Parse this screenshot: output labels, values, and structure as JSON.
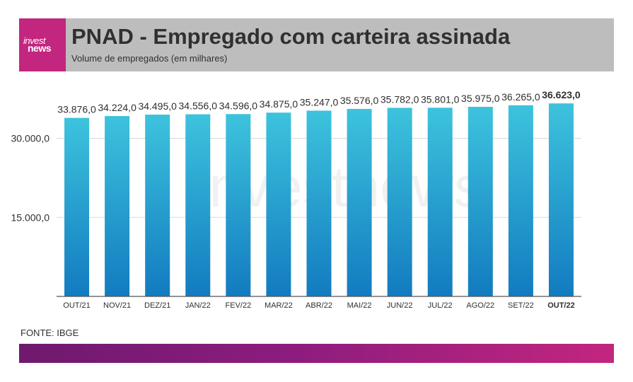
{
  "logo": {
    "line1": "invest",
    "line2": "news"
  },
  "header": {
    "title": "PNAD - Empregado com carteira assinada",
    "subtitle": "Volume de empregados (em milhares)"
  },
  "watermark": "investnews",
  "source": "FONTE: IBGE",
  "colors": {
    "bar_top": "#3dc3dd",
    "bar_bottom": "#127bc0",
    "accent": "#c2267f"
  },
  "chart_data": {
    "type": "bar",
    "categories": [
      "OUT/21",
      "NOV/21",
      "DEZ/21",
      "JAN/22",
      "FEV/22",
      "MAR/22",
      "ABR/22",
      "MAI/22",
      "JUN/22",
      "JUL/22",
      "AGO/22",
      "SET/22",
      "OUT/22"
    ],
    "values": [
      33876,
      34224,
      34495,
      34556,
      34596,
      34875,
      35247,
      35576,
      35782,
      35801,
      35975,
      36265,
      36623
    ],
    "data_labels": [
      "33.876,0",
      "34.224,0",
      "34.495,0",
      "34.556,0",
      "34.596,0",
      "34.875,0",
      "35.247,0",
      "35.576,0",
      "35.782,0",
      "35.801,0",
      "35.975,0",
      "36.265,0",
      "36.623,0"
    ],
    "ytick_values": [
      15000,
      30000
    ],
    "ytick_labels": [
      "15.000,0",
      "30.000,0"
    ],
    "ylim": [
      0,
      40000
    ],
    "highlight_last": true,
    "grid": true
  }
}
